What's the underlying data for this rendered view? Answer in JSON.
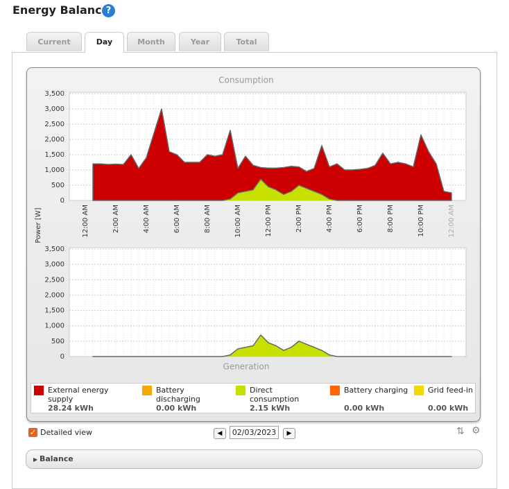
{
  "header": {
    "title": "Energy Balance",
    "help": "?"
  },
  "tabs": [
    "Current",
    "Day",
    "Month",
    "Year",
    "Total"
  ],
  "chart_data": [
    {
      "type": "area",
      "title": "Consumption",
      "y_label": "Power [W]",
      "categories": [
        "12:00 AM",
        null,
        null,
        null,
        "2:00 AM",
        null,
        null,
        null,
        "4:00 AM",
        null,
        null,
        null,
        "6:00 AM",
        null,
        null,
        null,
        "8:00 AM",
        null,
        null,
        null,
        "10:00 AM",
        null,
        null,
        null,
        "12:00 PM",
        null,
        null,
        null,
        "2:00 PM",
        null,
        null,
        null,
        "4:00 PM",
        null,
        null,
        null,
        "6:00 PM",
        null,
        null,
        null,
        "8:00 PM",
        null,
        null,
        null,
        "10:00 PM",
        null,
        null,
        null,
        "12:00 AM"
      ],
      "ylim": [
        0,
        3500
      ],
      "yticks": [
        0,
        {
          "value": 500,
          "label": "500"
        },
        {
          "value": 1000,
          "label": "1,000"
        },
        {
          "value": 1500,
          "label": "1,500"
        },
        {
          "value": 2000,
          "label": "2,000"
        },
        {
          "value": 2500,
          "label": "2,500"
        },
        {
          "value": 3000,
          "label": "3,000"
        },
        {
          "value": 3500,
          "label": "3,500"
        }
      ],
      "grid": true,
      "series": [
        {
          "name": "Direct consumption",
          "color": "#c8e000",
          "values": [
            null,
            0,
            0,
            0,
            0,
            0,
            0,
            0,
            0,
            0,
            0,
            0,
            0,
            0,
            0,
            0,
            0,
            0,
            0,
            50,
            250,
            300,
            350,
            700,
            450,
            350,
            200,
            300,
            500,
            400,
            300,
            200,
            50,
            0,
            0,
            0,
            0,
            0,
            0,
            0,
            0,
            0,
            0,
            0,
            0,
            0,
            0,
            0,
            0
          ]
        },
        {
          "name": "External energy supply",
          "color": "#cc0000",
          "values": [
            null,
            1200,
            1200,
            1180,
            1190,
            1180,
            1500,
            1050,
            1400,
            2200,
            3000,
            1600,
            1500,
            1250,
            1250,
            1250,
            1500,
            1450,
            1500,
            2250,
            800,
            1150,
            800,
            380,
            610,
            710,
            880,
            820,
            600,
            550,
            750,
            1600,
            1050,
            1200,
            1000,
            1000,
            1020,
            1050,
            1150,
            1550,
            1200,
            1250,
            1200,
            1100,
            2150,
            1600,
            1200,
            300,
            250
          ]
        }
      ]
    },
    {
      "type": "area",
      "title": "Generation",
      "categories": [
        "12:00 AM",
        null,
        null,
        null,
        "2:00 AM",
        null,
        null,
        null,
        "4:00 AM",
        null,
        null,
        null,
        "6:00 AM",
        null,
        null,
        null,
        "8:00 AM",
        null,
        null,
        null,
        "10:00 AM",
        null,
        null,
        null,
        "12:00 PM",
        null,
        null,
        null,
        "2:00 PM",
        null,
        null,
        null,
        "4:00 PM",
        null,
        null,
        null,
        "6:00 PM",
        null,
        null,
        null,
        "8:00 PM",
        null,
        null,
        null,
        "10:00 PM",
        null,
        null,
        null,
        "12:00 AM"
      ],
      "ylim": [
        0,
        3500
      ],
      "yticks": [
        0,
        {
          "value": 500,
          "label": "500"
        },
        {
          "value": 1000,
          "label": "1,000"
        },
        {
          "value": 1500,
          "label": "1,500"
        },
        {
          "value": 2000,
          "label": "2,000"
        },
        {
          "value": 2500,
          "label": "2,500"
        },
        {
          "value": 3000,
          "label": "3,000"
        },
        {
          "value": 3500,
          "label": "3,500"
        }
      ],
      "grid": true,
      "series": [
        {
          "name": "Direct consumption",
          "color": "#c8e000",
          "values": [
            null,
            0,
            0,
            0,
            0,
            0,
            0,
            0,
            0,
            0,
            0,
            0,
            0,
            0,
            0,
            0,
            0,
            0,
            0,
            50,
            250,
            300,
            350,
            700,
            450,
            350,
            200,
            300,
            500,
            400,
            300,
            200,
            50,
            0,
            0,
            0,
            0,
            0,
            0,
            0,
            0,
            0,
            0,
            0,
            0,
            0,
            0,
            0,
            0
          ]
        },
        {
          "name": "Grid feed-in",
          "color": "#f5d800",
          "values": [
            null,
            0,
            0,
            0,
            0,
            0,
            0,
            0,
            0,
            0,
            0,
            0,
            0,
            0,
            0,
            0,
            0,
            0,
            0,
            0,
            0,
            0,
            0,
            0,
            0,
            0,
            0,
            0,
            0,
            0,
            0,
            0,
            0,
            0,
            0,
            0,
            0,
            0,
            0,
            0,
            0,
            0,
            0,
            0,
            0,
            0,
            0,
            0,
            0
          ]
        }
      ]
    }
  ],
  "legend": {
    "items": [
      {
        "name": "External energy supply",
        "color": "#cc0000",
        "total": "28.24 kWh"
      },
      {
        "name": "Battery discharging",
        "color": "#f5a800",
        "total": "0.00 kWh"
      },
      {
        "name": "Direct consumption",
        "color": "#c8e000",
        "total": "2.15 kWh"
      },
      {
        "name": "Battery charging",
        "color": "#ff6600",
        "total": "0.00 kWh"
      },
      {
        "name": "Grid feed-in",
        "color": "#f5d800",
        "total": "0.00 kWh"
      }
    ]
  },
  "controls": {
    "detailed_view": "Detailed view",
    "date": "02/03/2023"
  },
  "balance": {
    "title": "Balance"
  }
}
